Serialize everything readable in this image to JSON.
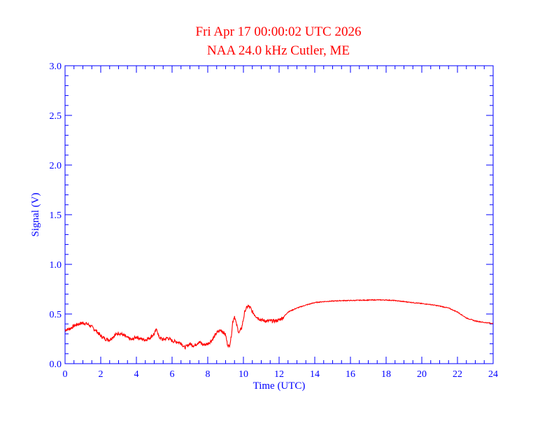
{
  "colors": {
    "axis": "#0000ff",
    "title": "#ff0000",
    "signal": "#ff0000",
    "background": "#ffffff"
  },
  "chart_data": {
    "type": "line",
    "title": "Fri Apr 17 00:00:02 UTC 2026",
    "subtitle": "NAA 24.0 kHz Cutler, ME",
    "xlabel": "Time (UTC)",
    "ylabel": "Signal (V)",
    "xlim": [
      0,
      24
    ],
    "ylim": [
      0,
      3.0
    ],
    "xticks": [
      "0",
      "2",
      "4",
      "6",
      "8",
      "10",
      "12",
      "14",
      "16",
      "18",
      "20",
      "22",
      "24"
    ],
    "yticks": [
      "0.0",
      "0.5",
      "1.0",
      "1.5",
      "2.0",
      "2.5",
      "3.0"
    ],
    "xtick_values": [
      0,
      2,
      4,
      6,
      8,
      10,
      12,
      14,
      16,
      18,
      20,
      22,
      24
    ],
    "ytick_values": [
      0,
      0.5,
      1.0,
      1.5,
      2.0,
      2.5,
      3.0
    ],
    "grid": false,
    "series": [
      {
        "x": [
          0,
          0.25,
          0.5,
          0.75,
          1.0,
          1.25,
          1.5,
          1.75,
          2.0,
          2.25,
          2.5,
          2.75,
          3.0,
          3.25,
          3.5,
          3.75,
          4.0,
          4.25,
          4.5,
          4.75,
          5.0,
          5.15,
          5.25,
          5.5,
          5.75,
          6.0,
          6.25,
          6.5,
          6.7,
          7.0,
          7.25,
          7.5,
          7.75,
          8.0,
          8.25,
          8.5,
          8.75,
          9.0,
          9.1,
          9.2,
          9.3,
          9.4,
          9.5,
          9.6,
          9.75,
          9.9,
          10.0,
          10.1,
          10.25,
          10.4,
          10.5,
          10.75,
          11.0,
          11.25,
          11.5,
          11.75,
          12.0,
          12.25,
          12.5,
          12.75,
          13.0,
          13.5,
          14.0,
          14.5,
          15.0,
          15.5,
          16.0,
          16.5,
          17.0,
          17.5,
          18.0,
          18.5,
          19.0,
          19.5,
          20.0,
          20.5,
          21.0,
          21.5,
          22.0,
          22.5,
          23.0,
          23.5,
          24.0
        ],
        "y": [
          0.34,
          0.35,
          0.38,
          0.4,
          0.41,
          0.4,
          0.37,
          0.33,
          0.28,
          0.25,
          0.24,
          0.28,
          0.31,
          0.29,
          0.26,
          0.24,
          0.27,
          0.25,
          0.24,
          0.26,
          0.3,
          0.35,
          0.27,
          0.24,
          0.26,
          0.23,
          0.22,
          0.21,
          0.16,
          0.2,
          0.18,
          0.22,
          0.19,
          0.2,
          0.24,
          0.31,
          0.34,
          0.29,
          0.2,
          0.17,
          0.25,
          0.42,
          0.48,
          0.4,
          0.31,
          0.36,
          0.45,
          0.54,
          0.58,
          0.56,
          0.52,
          0.47,
          0.44,
          0.43,
          0.43,
          0.43,
          0.44,
          0.47,
          0.52,
          0.54,
          0.56,
          0.59,
          0.615,
          0.625,
          0.63,
          0.635,
          0.636,
          0.638,
          0.64,
          0.642,
          0.641,
          0.635,
          0.625,
          0.615,
          0.605,
          0.595,
          0.58,
          0.56,
          0.52,
          0.46,
          0.43,
          0.415,
          0.405
        ]
      }
    ]
  }
}
